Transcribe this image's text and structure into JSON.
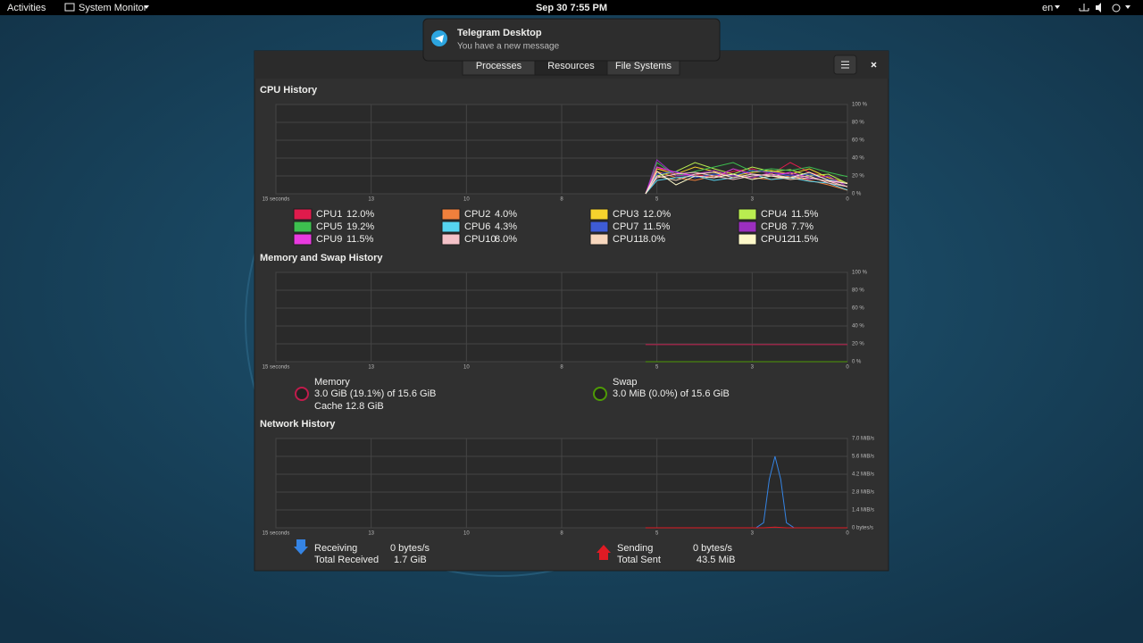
{
  "topbar": {
    "activities": "Activities",
    "app": "System Monitor",
    "clock": "Sep 30  7:55 PM",
    "language": "en"
  },
  "notification": {
    "title": "Telegram Desktop",
    "body": "You have a new message"
  },
  "tabs": [
    "Processes",
    "Resources",
    "File Systems"
  ],
  "cpu_history": {
    "type": "line",
    "title": "CPU History",
    "xlim": [
      15,
      0
    ],
    "ylim": [
      0,
      100
    ],
    "xticks": [
      {
        "value": 15,
        "label": "15 seconds"
      },
      {
        "value": 12.5,
        "label": "13"
      },
      {
        "value": 10,
        "label": "10"
      },
      {
        "value": 7.5,
        "label": "8"
      },
      {
        "value": 5,
        "label": "5"
      },
      {
        "value": 2.5,
        "label": "3"
      },
      {
        "value": 0,
        "label": "0"
      }
    ],
    "yticks": [
      {
        "value": 100,
        "label": "100 %"
      },
      {
        "value": 80,
        "label": "80 %"
      },
      {
        "value": 60,
        "label": "60 %"
      },
      {
        "value": 40,
        "label": "40 %"
      },
      {
        "value": 20,
        "label": "20 %"
      },
      {
        "value": 0,
        "label": "0 %"
      }
    ],
    "x": [
      5.3,
      5,
      4.5,
      4,
      3.5,
      3,
      2.5,
      2,
      1.5,
      1,
      0.5,
      0
    ],
    "series": [
      {
        "name": "CPU1",
        "usage": "12.0%",
        "color": "#e01b4c",
        "values": [
          0,
          30,
          20,
          22,
          18,
          25,
          28,
          22,
          35,
          24,
          18,
          12
        ]
      },
      {
        "name": "CPU2",
        "usage": "4.0%",
        "color": "#f0803c",
        "values": [
          0,
          25,
          18,
          15,
          20,
          22,
          18,
          16,
          20,
          15,
          10,
          4
        ]
      },
      {
        "name": "CPU3",
        "usage": "12.0%",
        "color": "#f6d32d",
        "values": [
          0,
          28,
          22,
          30,
          25,
          20,
          24,
          26,
          22,
          28,
          18,
          12
        ]
      },
      {
        "name": "CPU4",
        "usage": "11.5%",
        "color": "#b9ed50",
        "values": [
          0,
          20,
          25,
          35,
          28,
          22,
          30,
          25,
          27,
          20,
          22,
          11.5
        ]
      },
      {
        "name": "CPU5",
        "usage": "19.2%",
        "color": "#3dbf4f",
        "values": [
          0,
          35,
          20,
          25,
          30,
          35,
          25,
          28,
          26,
          30,
          24,
          19.2
        ]
      },
      {
        "name": "CPU6",
        "usage": "4.3%",
        "color": "#56d4f0",
        "values": [
          0,
          15,
          18,
          20,
          15,
          18,
          22,
          16,
          18,
          14,
          12,
          4.3
        ]
      },
      {
        "name": "CPU7",
        "usage": "11.5%",
        "color": "#3e5cd6",
        "values": [
          0,
          22,
          25,
          18,
          22,
          20,
          26,
          24,
          20,
          22,
          16,
          11.5
        ]
      },
      {
        "name": "CPU8",
        "usage": "7.7%",
        "color": "#9b2fbf",
        "values": [
          0,
          38,
          20,
          22,
          26,
          20,
          18,
          24,
          22,
          16,
          20,
          7.7
        ]
      },
      {
        "name": "CPU9",
        "usage": "11.5%",
        "color": "#e83adf",
        "values": [
          0,
          30,
          24,
          20,
          18,
          28,
          22,
          20,
          24,
          18,
          14,
          11.5
        ]
      },
      {
        "name": "CPU10",
        "usage": "8.0%",
        "color": "#f4c2c8",
        "values": [
          0,
          18,
          22,
          24,
          20,
          16,
          20,
          22,
          18,
          20,
          12,
          8
        ]
      },
      {
        "name": "CPU11",
        "usage": "8.0%",
        "color": "#f7d7bd",
        "values": [
          0,
          20,
          15,
          22,
          24,
          18,
          22,
          20,
          16,
          18,
          14,
          8
        ]
      },
      {
        "name": "CPU12",
        "usage": "11.5%",
        "color": "#fdf8c8",
        "values": [
          0,
          25,
          10,
          20,
          18,
          22,
          16,
          20,
          18,
          24,
          15,
          11.5
        ]
      }
    ]
  },
  "memory_history": {
    "type": "line",
    "title": "Memory and Swap History",
    "xlim": [
      15,
      0
    ],
    "ylim": [
      0,
      100
    ],
    "xticks": [
      {
        "value": 15,
        "label": "15 seconds"
      },
      {
        "value": 12.5,
        "label": "13"
      },
      {
        "value": 10,
        "label": "10"
      },
      {
        "value": 7.5,
        "label": "8"
      },
      {
        "value": 5,
        "label": "5"
      },
      {
        "value": 2.5,
        "label": "3"
      },
      {
        "value": 0,
        "label": "0"
      }
    ],
    "yticks": [
      {
        "value": 100,
        "label": "100 %"
      },
      {
        "value": 80,
        "label": "80 %"
      },
      {
        "value": 60,
        "label": "60 %"
      },
      {
        "value": 40,
        "label": "40 %"
      },
      {
        "value": 20,
        "label": "20 %"
      },
      {
        "value": 0,
        "label": "0 %"
      }
    ],
    "x": [
      5.3,
      0
    ],
    "series": [
      {
        "name": "Memory",
        "color": "#c01c4c",
        "lines": [
          "3.0 GiB (19.1%) of 15.6 GiB",
          "Cache 12.8 GiB"
        ],
        "values": [
          19.1,
          19.1
        ]
      },
      {
        "name": "Swap",
        "color": "#4e9a06",
        "lines": [
          "3.0 MiB (0.0%) of 15.6 GiB"
        ],
        "values": [
          0,
          0
        ]
      }
    ]
  },
  "network_history": {
    "type": "line",
    "title": "Network History",
    "xlim": [
      15,
      0
    ],
    "ylim": [
      0,
      7
    ],
    "xticks": [
      {
        "value": 15,
        "label": "15 seconds"
      },
      {
        "value": 12.5,
        "label": "13"
      },
      {
        "value": 10,
        "label": "10"
      },
      {
        "value": 7.5,
        "label": "8"
      },
      {
        "value": 5,
        "label": "5"
      },
      {
        "value": 2.5,
        "label": "3"
      },
      {
        "value": 0,
        "label": "0"
      }
    ],
    "yticks": [
      {
        "value": 7,
        "label": "7.0 MiB/s"
      },
      {
        "value": 5.6,
        "label": "5.6 MiB/s"
      },
      {
        "value": 4.2,
        "label": "4.2 MiB/s"
      },
      {
        "value": 2.8,
        "label": "2.8 MiB/s"
      },
      {
        "value": 1.4,
        "label": "1.4 MiB/s"
      },
      {
        "value": 0,
        "label": "0 bytes/s"
      }
    ],
    "x": [
      5.3,
      2.4,
      2.2,
      2.05,
      1.9,
      1.75,
      1.6,
      1.4,
      0
    ],
    "series": [
      {
        "name": "Receiving",
        "rate": "0 bytes/s",
        "total_label": "Total Received",
        "total": "1.7 GiB",
        "color": "#3584e4",
        "values": [
          0,
          0,
          0.4,
          3.8,
          5.6,
          3.8,
          0.4,
          0,
          0
        ]
      },
      {
        "name": "Sending",
        "rate": "0 bytes/s",
        "total_label": "Total Sent",
        "total": "43.5 MiB",
        "color": "#e01b24",
        "values": [
          0,
          0,
          0,
          0.03,
          0.05,
          0.03,
          0,
          0,
          0
        ]
      }
    ]
  }
}
